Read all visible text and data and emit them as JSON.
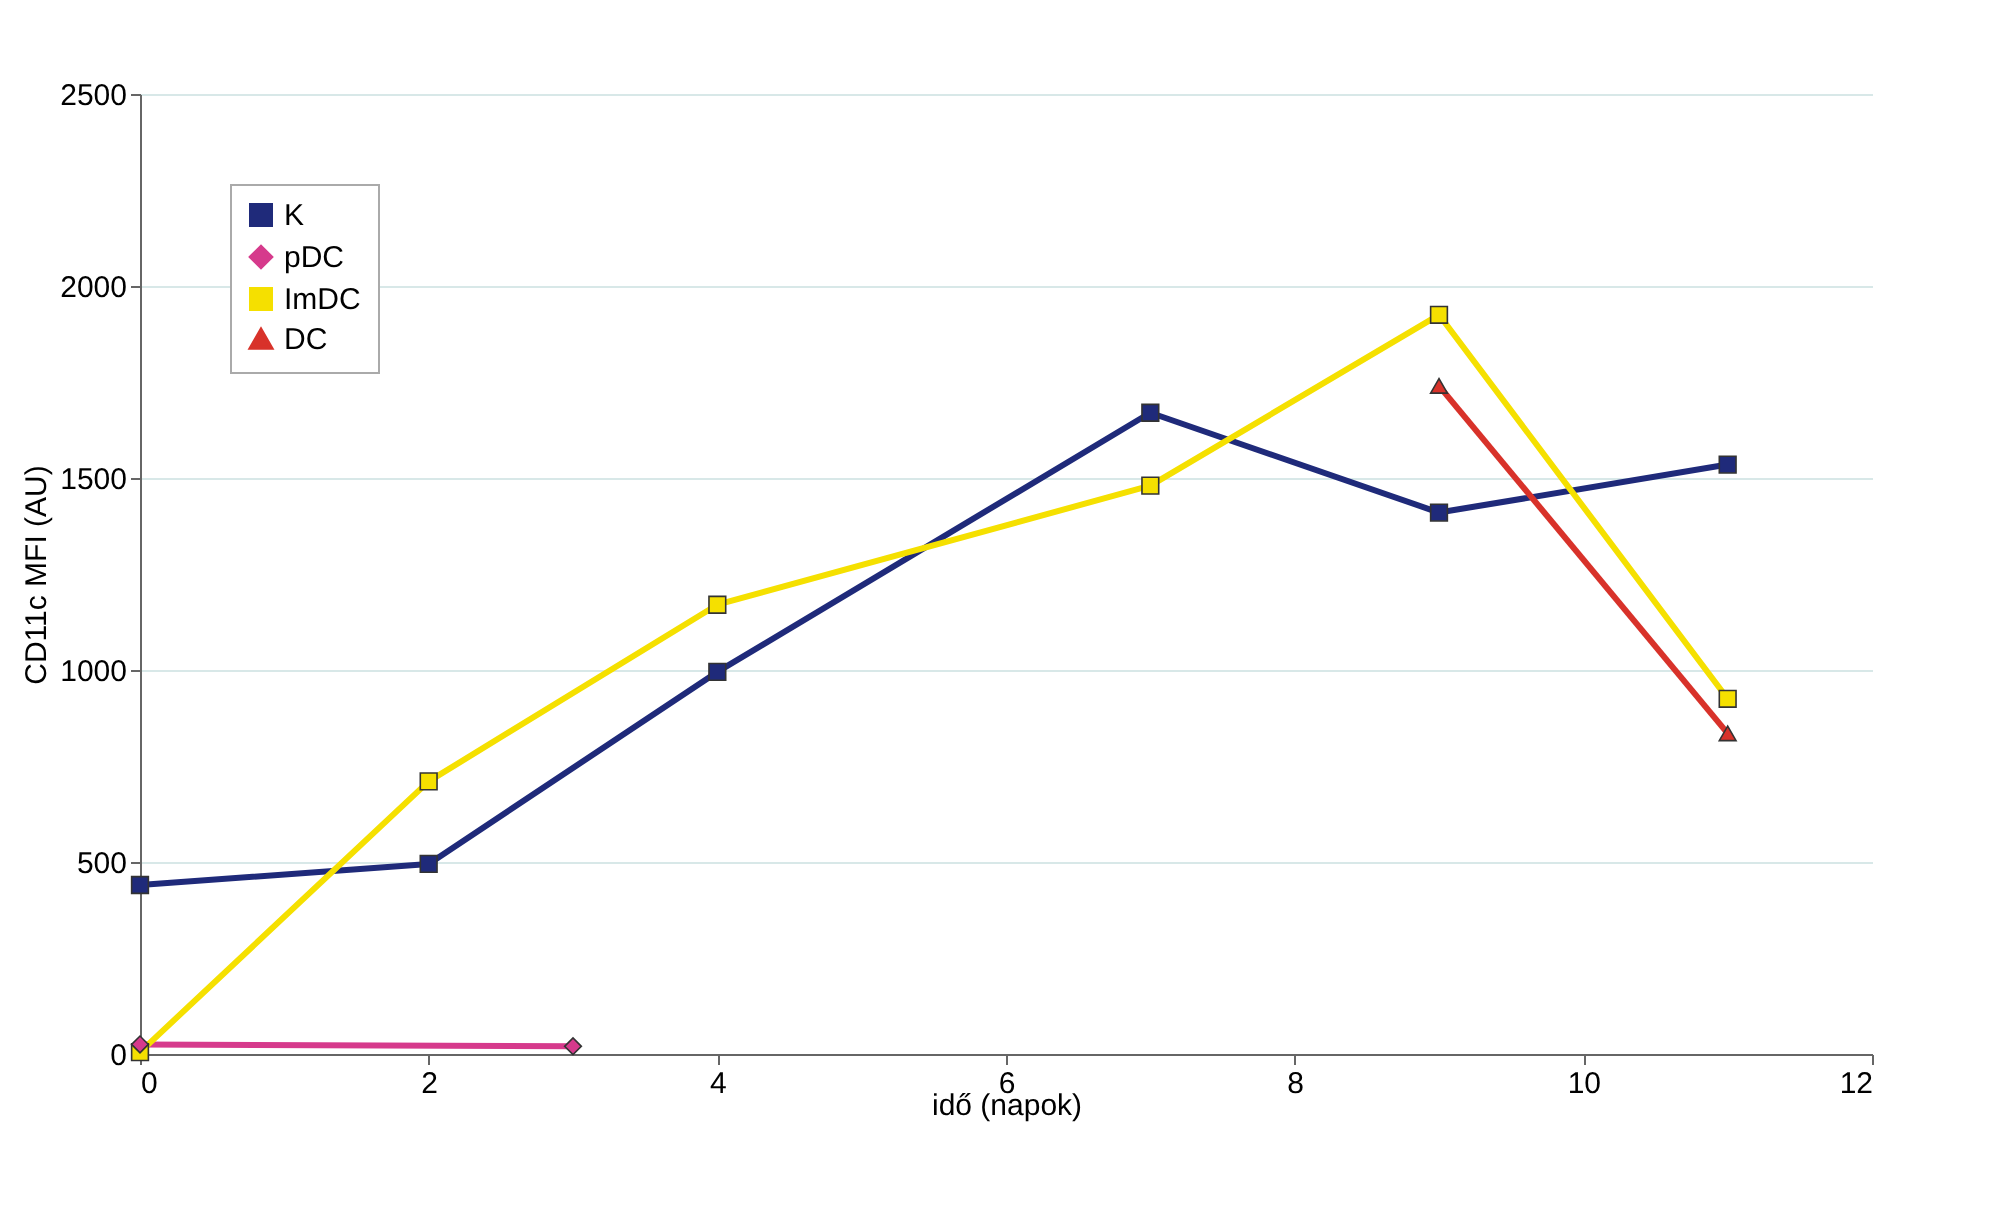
{
  "chart_data": {
    "type": "line",
    "xlabel": "idő (napok)",
    "ylabel": "CD11c MFI (AU)",
    "xlim": [
      0,
      12
    ],
    "xticks": [
      0,
      2,
      4,
      6,
      8,
      10,
      12
    ],
    "ylim": [
      0,
      2500
    ],
    "yticks": [
      0,
      500,
      1000,
      1500,
      2000,
      2500
    ],
    "grid": "y",
    "legend": "top left",
    "line_style": "solid",
    "series": [
      {
        "name": "K",
        "color": "#1f2a7a",
        "marker": "square",
        "x": [
          0,
          2,
          4,
          7,
          9,
          11
        ],
        "values": [
          440,
          495,
          995,
          1670,
          1410,
          1535
        ]
      },
      {
        "name": "pDC",
        "color": "#d63a8c",
        "marker": "diamond",
        "x": [
          0,
          3
        ],
        "values": [
          25,
          20
        ]
      },
      {
        "name": "ImDC",
        "color": "#f5e000",
        "marker": "square",
        "x": [
          0,
          2,
          4,
          7,
          9,
          11
        ],
        "values": [
          5,
          710,
          1170,
          1480,
          1925,
          925
        ]
      },
      {
        "name": "DC",
        "color": "#d8322a",
        "marker": "triangle",
        "x": [
          9,
          11
        ],
        "values": [
          1740,
          835
        ]
      }
    ]
  }
}
